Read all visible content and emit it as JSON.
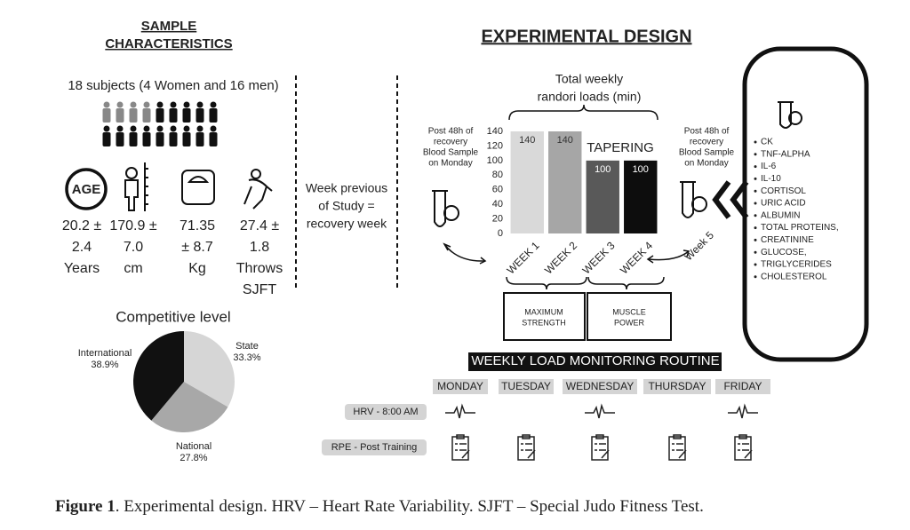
{
  "sample_characteristics": {
    "title_lines": [
      "SAMPLE",
      "CHARACTERISTICS"
    ],
    "subjects": "18 subjects (4 Women and 16 men)",
    "age_icon": "AGE",
    "stats": [
      {
        "lines": [
          "20.2 ±",
          "2.4",
          "Years"
        ]
      },
      {
        "lines": [
          "170.9 ±",
          "7.0",
          "cm"
        ]
      },
      {
        "lines": [
          "71.35",
          "± 8.7",
          "Kg"
        ]
      },
      {
        "lines": [
          "27.4 ±",
          "1.8",
          "Throws",
          "SJFT"
        ]
      }
    ]
  },
  "recovery_note": {
    "lines": [
      "Week previous",
      "of Study =",
      "recovery week"
    ]
  },
  "experimental_design": {
    "title": "EXPERIMENTAL DESIGN",
    "loads_label_lines": [
      "Total weekly",
      "randori loads (min)"
    ],
    "blood_left_lines": [
      "Post 48h of",
      "recovery",
      "Blood Sample",
      "on Monday"
    ],
    "blood_right_lines": [
      "Post 48h of",
      "recovery",
      "Blood Sample",
      "on Monday"
    ],
    "week5": "Week 5",
    "phases": [
      {
        "lines": [
          "MAXIMUM",
          "STRENGTH"
        ]
      },
      {
        "lines": [
          "MUSCLE",
          "POWER"
        ]
      }
    ]
  },
  "biomarkers": [
    "CK",
    "TNF-ALPHA",
    "IL-6",
    "IL-10",
    "CORTISOL",
    "URIC ACID",
    "ALBUMIN",
    "TOTAL PROTEINS,",
    "CREATININE",
    "GLUCOSE,",
    "TRIGLYCERIDES",
    "CHOLESTEROL"
  ],
  "monitoring": {
    "title": "WEEKLY LOAD MONITORING ROUTINE",
    "days": [
      "MONDAY",
      "TUESDAY",
      "WEDNESDAY",
      "THURSDAY",
      "FRIDAY"
    ],
    "rows": [
      {
        "label": "HRV - 8:00 AM"
      },
      {
        "label": "RPE - Post Training"
      }
    ]
  },
  "caption": {
    "label": "Figure 1",
    "text": ". Experimental design. HRV – Heart Rate Variability. SJFT – Special Judo Fitness Test."
  },
  "chart_data": [
    {
      "type": "bar",
      "categories": [
        "WEEK 1",
        "WEEK 2",
        "WEEK 3",
        "WEEK 4"
      ],
      "values": [
        140,
        140,
        100,
        100
      ],
      "colors": [
        "#d9d9d9",
        "#a6a6a6",
        "#595959",
        "#0d0d0d"
      ],
      "ylim": [
        0,
        140
      ],
      "yticks": [
        0,
        20,
        40,
        60,
        80,
        100,
        120,
        140
      ],
      "annotation": "TAPERING"
    },
    {
      "type": "pie",
      "title": "Competitive level",
      "categories": [
        "International",
        "State",
        "National"
      ],
      "values": [
        38.9,
        33.3,
        27.8
      ],
      "value_labels": [
        "38.9%",
        "33.3%",
        "27.8%"
      ],
      "colors": [
        "#111111",
        "#d6d6d6",
        "#a8a8a8"
      ]
    }
  ]
}
